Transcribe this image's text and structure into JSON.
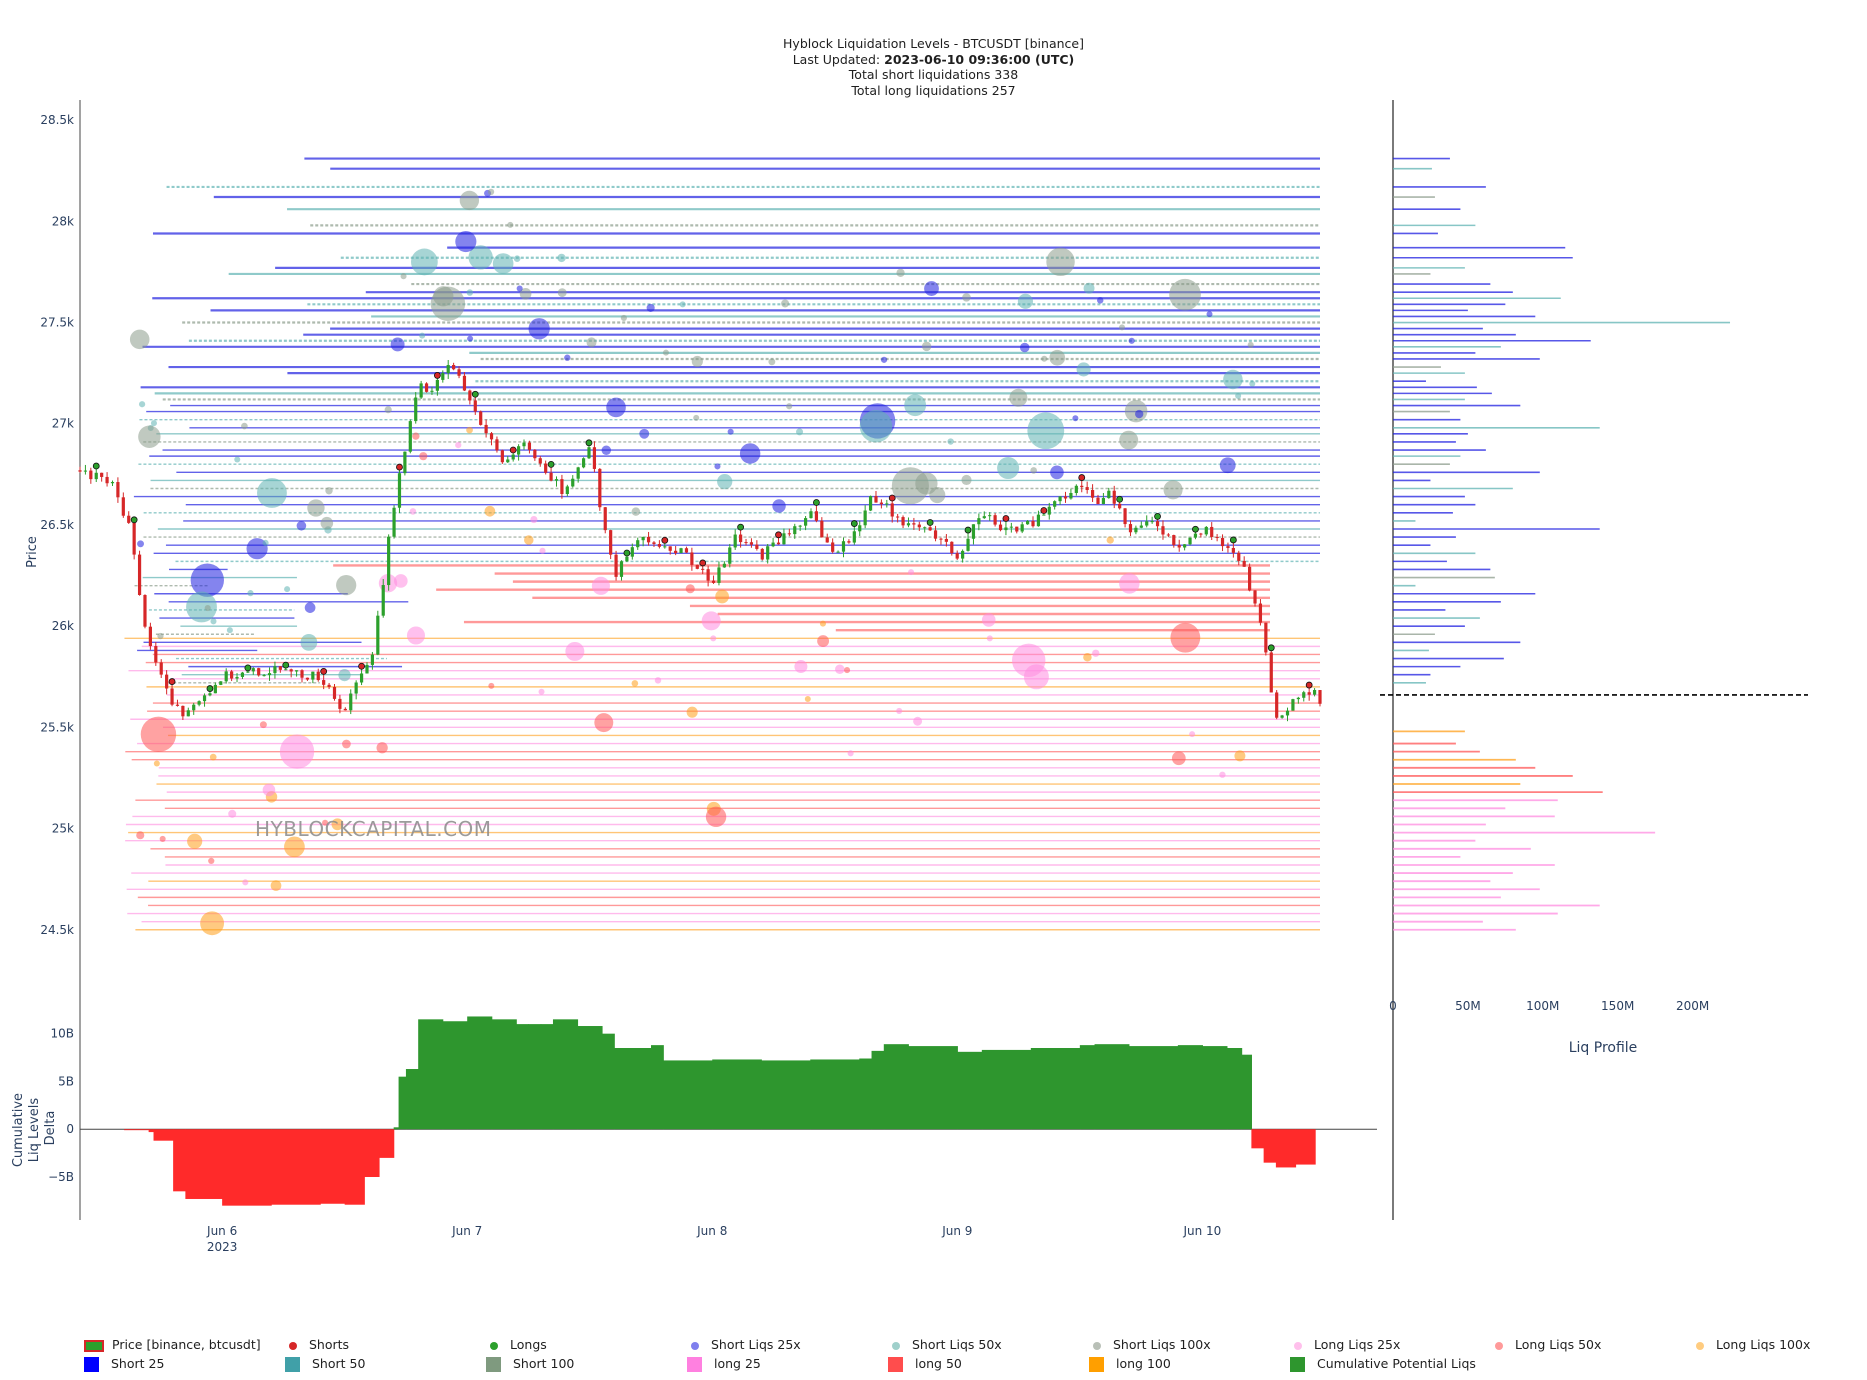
{
  "header": {
    "title_line": "Hyblock Liquidation Levels - BTCUSDT [binance]",
    "updated_label": "Last Updated:",
    "updated_value": "2023-06-10 09:36:00 (UTC)",
    "short_total_line": "Total short liquidations 338",
    "long_total_line": "Total long liquidations 257"
  },
  "watermark": "HYBLOCKCAPITAL.COM",
  "colors": {
    "short25": "#1f1fe0",
    "short50": "#5fb3b3",
    "short100": "#8c9c8c",
    "long25": "#ff8ce0",
    "long50": "#ff5555",
    "long100": "#ff9f1a",
    "cumulative_pos": "#2e962e",
    "cumulative_neg": "#ff2a2a",
    "candle_up": "#2ca02c",
    "candle_down": "#d62728"
  },
  "chart_data": [
    {
      "type": "line",
      "name": "price-panel",
      "ylabel": "Price",
      "ylim": [
        24400,
        28550
      ],
      "y_ticks": [
        "28.5k",
        "28k",
        "27.5k",
        "27k",
        "26.5k",
        "26k",
        "25.5k",
        "25k",
        "24.5k"
      ],
      "y_tick_values": [
        28500,
        28000,
        27500,
        27000,
        26500,
        26000,
        25500,
        25000,
        24500
      ],
      "x_range_days": [
        5.42,
        10.48
      ],
      "x_ticks": [
        "Jun 6",
        "Jun 7",
        "Jun 8",
        "Jun 9",
        "Jun 10"
      ],
      "x_tick_days": [
        6,
        7,
        8,
        9,
        10
      ],
      "x_year_label": "2023",
      "price": {
        "name": "Price [binance, btcusdt]",
        "x_days": [
          5.42,
          5.55,
          5.62,
          5.7,
          5.78,
          5.85,
          6.0,
          6.2,
          6.4,
          6.5,
          6.56,
          6.62,
          6.66,
          6.7,
          6.74,
          6.8,
          6.85,
          6.92,
          7.0,
          7.08,
          7.15,
          7.22,
          7.3,
          7.4,
          7.5,
          7.55,
          7.6,
          7.66,
          7.72,
          7.8,
          7.9,
          8.0,
          8.1,
          8.2,
          8.3,
          8.4,
          8.5,
          8.6,
          8.65,
          8.72,
          8.8,
          8.9,
          9.0,
          9.1,
          9.2,
          9.3,
          9.4,
          9.5,
          9.56,
          9.62,
          9.7,
          9.8,
          9.9,
          10.0,
          10.1,
          10.14,
          10.17,
          10.2,
          10.25,
          10.3,
          10.38,
          10.42,
          10.46,
          10.48
        ],
        "values": [
          26770,
          26700,
          26500,
          25900,
          25650,
          25550,
          25750,
          25780,
          25750,
          25580,
          25750,
          25900,
          26250,
          26600,
          26850,
          27200,
          27150,
          27300,
          27150,
          26950,
          26800,
          26900,
          26800,
          26650,
          26900,
          26550,
          26250,
          26350,
          26450,
          26400,
          26350,
          26200,
          26450,
          26350,
          26450,
          26550,
          26350,
          26500,
          26650,
          26580,
          26500,
          26450,
          26350,
          26550,
          26480,
          26500,
          26600,
          26700,
          26600,
          26680,
          26480,
          26520,
          26400,
          26480,
          26400,
          26320,
          26280,
          26150,
          25950,
          25520,
          25650,
          25700,
          25660,
          25620
        ]
      },
      "short_liq_levels": [
        28310,
        28260,
        28170,
        28120,
        28060,
        27980,
        27940,
        27870,
        27820,
        27770,
        27740,
        27690,
        27650,
        27620,
        27590,
        27560,
        27530,
        27500,
        27470,
        27440,
        27410,
        27380,
        27350,
        27320,
        27280,
        27250,
        27210,
        27180,
        27150,
        27120,
        27090,
        27060,
        27020,
        26980,
        26950,
        26910,
        26870,
        26840,
        26800,
        26760,
        26720,
        26680,
        26640,
        26600,
        26560,
        26520,
        26480,
        26440,
        26400,
        26360,
        26320,
        26280,
        26240,
        26200,
        26160,
        26120,
        26080,
        26040,
        26000,
        25960,
        25920,
        25880,
        25840,
        25800,
        25760,
        25720
      ],
      "long_liq_levels": [
        26300,
        26260,
        26220,
        26180,
        26140,
        26100,
        26060,
        26020,
        25980,
        25940,
        25900,
        25860,
        25820,
        25780,
        25740,
        25700,
        25660,
        25620,
        25580,
        25540,
        25500,
        25460,
        25420,
        25380,
        25340,
        25300,
        25260,
        25220,
        25180,
        25140,
        25100,
        25060,
        25020,
        24980,
        24940,
        24900,
        24860,
        24820,
        24780,
        24740,
        24700,
        24660,
        24620,
        24580,
        24540,
        24500
      ]
    },
    {
      "type": "area",
      "name": "cumulative-liq-delta",
      "ylabel": "Cumulative Liq Levels Delta",
      "series_name": "Cumulative Potential Liqs",
      "ylim": [
        -9500000000,
        13000000000
      ],
      "y_ticks": [
        "10B",
        "5B",
        "0",
        "−5B"
      ],
      "y_tick_values": [
        10000000000,
        5000000000,
        0,
        -5000000000
      ],
      "x_days": [
        5.6,
        5.7,
        5.72,
        5.8,
        5.85,
        6.0,
        6.2,
        6.4,
        6.5,
        6.58,
        6.64,
        6.7,
        6.72,
        6.75,
        6.8,
        6.9,
        7.0,
        7.1,
        7.2,
        7.25,
        7.3,
        7.35,
        7.45,
        7.55,
        7.6,
        7.7,
        7.75,
        7.8,
        8.0,
        8.2,
        8.4,
        8.6,
        8.65,
        8.7,
        8.8,
        9.0,
        9.1,
        9.3,
        9.5,
        9.56,
        9.7,
        9.9,
        10.0,
        10.1,
        10.16,
        10.2,
        10.25,
        10.3,
        10.38,
        10.46
      ],
      "values": [
        -100000000,
        -300000000,
        -1200000000,
        -6500000000,
        -7300000000,
        -8000000000,
        -7900000000,
        -7800000000,
        -7900000000,
        -5000000000,
        -3000000000,
        200000000,
        5500000000,
        6300000000,
        11500000000,
        11300000000,
        11800000000,
        11500000000,
        11000000000,
        11000000000,
        11000000000,
        11500000000,
        10800000000,
        10000000000,
        8500000000,
        8500000000,
        8800000000,
        7200000000,
        7300000000,
        7200000000,
        7300000000,
        7400000000,
        8200000000,
        8900000000,
        8700000000,
        8100000000,
        8300000000,
        8500000000,
        8800000000,
        8900000000,
        8700000000,
        8800000000,
        8700000000,
        8500000000,
        7800000000,
        -2000000000,
        -3500000000,
        -4000000000,
        -3700000000,
        -3800000000
      ]
    },
    {
      "type": "bar",
      "name": "liq-profile",
      "xlabel": "Liq Profile",
      "x_ticks": [
        "0",
        "50M",
        "100M",
        "150M",
        "200M"
      ],
      "x_tick_values": [
        0,
        50000000,
        100000000,
        150000000,
        200000000
      ],
      "xlim": [
        0,
        235000000
      ],
      "current_price": 25660,
      "short_bars_price": [
        28310,
        28260,
        28170,
        28120,
        28060,
        27980,
        27940,
        27870,
        27820,
        27770,
        27740,
        27690,
        27650,
        27620,
        27590,
        27560,
        27530,
        27500,
        27470,
        27440,
        27410,
        27380,
        27350,
        27320,
        27280,
        27250,
        27210,
        27180,
        27150,
        27120,
        27090,
        27060,
        27020,
        26980,
        26950,
        26910,
        26870,
        26840,
        26800,
        26760,
        26720,
        26680,
        26640,
        26600,
        26560,
        26520,
        26480,
        26440,
        26400,
        26360,
        26320,
        26280,
        26240,
        26200,
        26160,
        26120,
        26080,
        26040,
        26000,
        25960,
        25920,
        25880,
        25840,
        25800,
        25760,
        25720
      ],
      "short_bars_value": [
        38000000,
        26000000,
        62000000,
        28000000,
        45000000,
        55000000,
        30000000,
        115000000,
        120000000,
        48000000,
        25000000,
        65000000,
        80000000,
        112000000,
        75000000,
        50000000,
        95000000,
        225000000,
        60000000,
        82000000,
        132000000,
        72000000,
        55000000,
        98000000,
        32000000,
        48000000,
        22000000,
        56000000,
        66000000,
        48000000,
        85000000,
        38000000,
        45000000,
        138000000,
        50000000,
        42000000,
        62000000,
        45000000,
        38000000,
        98000000,
        25000000,
        80000000,
        48000000,
        55000000,
        40000000,
        15000000,
        138000000,
        42000000,
        25000000,
        55000000,
        36000000,
        65000000,
        68000000,
        15000000,
        95000000,
        72000000,
        35000000,
        58000000,
        48000000,
        28000000,
        85000000,
        24000000,
        74000000,
        45000000,
        25000000,
        22000000
      ],
      "long_bars_price": [
        25480,
        25420,
        25380,
        25340,
        25300,
        25260,
        25220,
        25180,
        25140,
        25100,
        25060,
        25020,
        24980,
        24940,
        24900,
        24860,
        24820,
        24780,
        24740,
        24700,
        24660,
        24620,
        24580,
        24540,
        24500
      ],
      "long_bars_value": [
        48000000,
        42000000,
        58000000,
        82000000,
        95000000,
        120000000,
        85000000,
        140000000,
        110000000,
        75000000,
        108000000,
        62000000,
        175000000,
        55000000,
        92000000,
        45000000,
        108000000,
        80000000,
        65000000,
        98000000,
        72000000,
        138000000,
        110000000,
        60000000,
        82000000
      ]
    }
  ],
  "legend": [
    {
      "label": "Price [binance, btcusdt]",
      "swatch": "candle",
      "color": "#2ca02c"
    },
    {
      "label": "Shorts",
      "swatch": "dot",
      "color": "#d62728"
    },
    {
      "label": "Longs",
      "swatch": "dot",
      "color": "#2ca02c"
    },
    {
      "label": "Short Liqs 25x",
      "swatch": "dot",
      "color": "#7f7fee"
    },
    {
      "label": "Short Liqs 50x",
      "swatch": "dot",
      "color": "#9fd0cb"
    },
    {
      "label": "Short Liqs 100x",
      "swatch": "dot",
      "color": "#b9c0b7"
    },
    {
      "label": "Long Liqs 25x",
      "swatch": "dot",
      "color": "#ffc0ec"
    },
    {
      "label": "Long Liqs 50x",
      "swatch": "dot",
      "color": "#ff9a9a"
    },
    {
      "label": "Long Liqs 100x",
      "swatch": "dot",
      "color": "#ffcc80"
    },
    {
      "label": "Short 25",
      "swatch": "square",
      "color": "#0000ff"
    },
    {
      "label": "Short 50",
      "swatch": "square",
      "color": "#40a0a8"
    },
    {
      "label": "Short 100",
      "swatch": "square",
      "color": "#7f9a7f"
    },
    {
      "label": "long 25",
      "swatch": "square",
      "color": "#ff80e0"
    },
    {
      "label": "long 50",
      "swatch": "square",
      "color": "#ff4d4d"
    },
    {
      "label": "long 100",
      "swatch": "square",
      "color": "#ff9f00"
    },
    {
      "label": "Cumulative Potential Liqs",
      "swatch": "square",
      "color": "#2e962e"
    }
  ]
}
